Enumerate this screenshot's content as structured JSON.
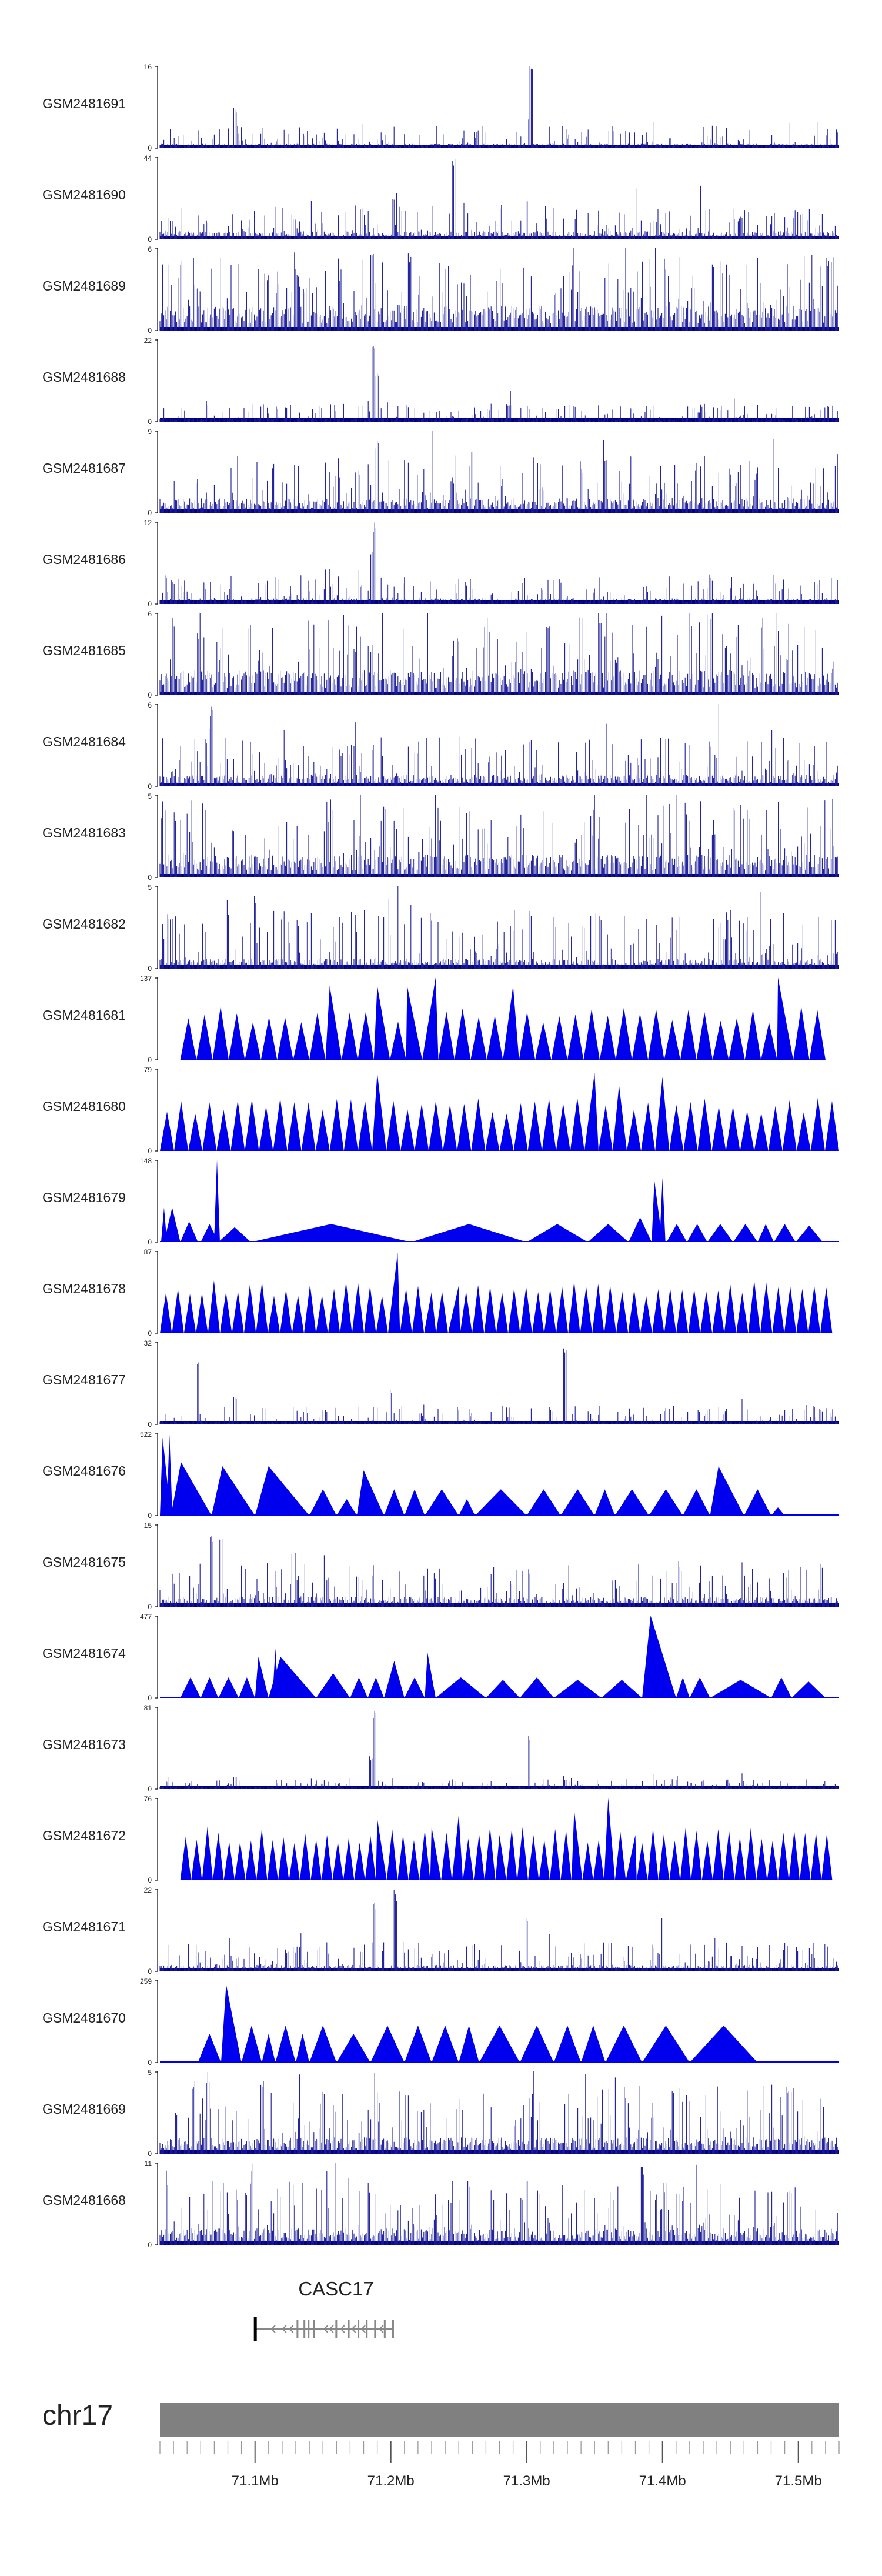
{
  "colors": {
    "bar": "#1a1a99",
    "bar_dark": "#00007f",
    "tri": "#0000ee",
    "axis": "#000000",
    "chrom": "#808080",
    "gene": "#888888"
  },
  "chart_data": {
    "type": "genome-browser",
    "region": {
      "chrom": "chr17",
      "start": 71030000,
      "end": 71530000
    },
    "x_ticks": [
      {
        "pos": 71100000,
        "label": "71.1Mb"
      },
      {
        "pos": 71200000,
        "label": "71.2Mb"
      },
      {
        "pos": 71300000,
        "label": "71.3Mb"
      },
      {
        "pos": 71400000,
        "label": "71.4Mb"
      },
      {
        "pos": 71500000,
        "label": "71.5Mb"
      }
    ],
    "tracks": [
      {
        "name": "GSM2481691",
        "ymax": "16",
        "ymin": "0",
        "style": "bar",
        "base": 0.06,
        "noise": 0.22,
        "peaks": [
          [
            71085000,
            0.5
          ],
          [
            71303000,
            1.0
          ]
        ]
      },
      {
        "name": "GSM2481690",
        "ymax": "44",
        "ymin": "0",
        "style": "bar",
        "base": 0.1,
        "noise": 0.35,
        "peaks": [
          [
            71246000,
            1.0
          ],
          [
            71202000,
            0.55
          ],
          [
            71300000,
            0.5
          ]
        ]
      },
      {
        "name": "GSM2481689",
        "ymax": "6",
        "ymin": "0",
        "style": "bar",
        "base": 0.3,
        "noise": 0.7,
        "peaks": [
          [
            71186000,
            1.0
          ],
          [
            71214000,
            0.95
          ]
        ]
      },
      {
        "name": "GSM2481688",
        "ymax": "22",
        "ymin": "0",
        "style": "bar",
        "base": 0.04,
        "noise": 0.18,
        "peaks": [
          [
            71187000,
            1.0
          ],
          [
            71190000,
            0.6
          ],
          [
            71288000,
            0.22
          ]
        ]
      },
      {
        "name": "GSM2481687",
        "ymax": "9",
        "ymin": "0",
        "style": "bar",
        "base": 0.18,
        "noise": 0.55,
        "peaks": [
          [
            71190000,
            0.9
          ],
          [
            71260000,
            0.8
          ]
        ]
      },
      {
        "name": "GSM2481686",
        "ymax": "12",
        "ymin": "0",
        "style": "bar",
        "base": 0.07,
        "noise": 0.3,
        "peaks": [
          [
            71188000,
            1.0
          ],
          [
            71186000,
            0.7
          ]
        ]
      },
      {
        "name": "GSM2481685",
        "ymax": "6",
        "ymin": "0",
        "style": "bar",
        "base": 0.3,
        "noise": 0.75,
        "peaks": [
          [
            71316000,
            0.9
          ]
        ]
      },
      {
        "name": "GSM2481684",
        "ymax": "6",
        "ymin": "0",
        "style": "bar",
        "base": 0.14,
        "noise": 0.5,
        "peaks": [
          [
            71068000,
            0.98
          ]
        ]
      },
      {
        "name": "GSM2481683",
        "ymax": "5",
        "ymin": "0",
        "style": "bar",
        "base": 0.28,
        "noise": 0.75,
        "peaks": []
      },
      {
        "name": "GSM2481682",
        "ymax": "5",
        "ymin": "0",
        "style": "bar",
        "base": 0.12,
        "noise": 0.6,
        "peaks": [
          [
            71100000,
            0.9
          ]
        ]
      },
      {
        "name": "GSM2481681",
        "ymax": "137",
        "ymin": "0",
        "style": "tri",
        "from": 71045000,
        "to": 71520000,
        "tris": 40,
        "high": [
          [
            71155000,
            0.9
          ],
          [
            71190000,
            0.9
          ],
          [
            71212000,
            0.9
          ],
          [
            71225000,
            0.85
          ],
          [
            71233000,
            1.0
          ],
          [
            71290000,
            0.9
          ],
          [
            71485000,
            1.0
          ]
        ]
      },
      {
        "name": "GSM2481680",
        "ymax": "79",
        "ymin": "0",
        "style": "tri",
        "from": 71030000,
        "to": 71530000,
        "tris": 48,
        "high": [
          [
            71190000,
            0.95
          ],
          [
            71350000,
            0.95
          ],
          [
            71368000,
            0.8
          ],
          [
            71400000,
            0.9
          ]
        ]
      },
      {
        "name": "GSM2481679",
        "ymax": "148",
        "ymin": "0",
        "style": "tri-sparse",
        "segs": [
          [
            71033000,
            71045000,
            0.42
          ],
          [
            71045000,
            71058000,
            0.25
          ],
          [
            71060000,
            71073000,
            0.22
          ],
          [
            71073000,
            71097000,
            0.18
          ],
          [
            71097000,
            71215000,
            0.22
          ],
          [
            71215000,
            71300000,
            0.22
          ],
          [
            71300000,
            71345000,
            0.22
          ],
          [
            71345000,
            71375000,
            0.22
          ],
          [
            71375000,
            71392000,
            0.3
          ],
          [
            71392000,
            71400000,
            0.75
          ],
          [
            71403000,
            71418000,
            0.22
          ],
          [
            71418000,
            71433000,
            0.22
          ],
          [
            71433000,
            71452000,
            0.22
          ],
          [
            71452000,
            71470000,
            0.22
          ],
          [
            71470000,
            71482000,
            0.22
          ],
          [
            71482000,
            71498000,
            0.22
          ],
          [
            71498000,
            71518000,
            0.2
          ]
        ],
        "spikes": [
          [
            71072000,
            1.0
          ],
          [
            71033000,
            0.42
          ],
          [
            71400000,
            0.78
          ]
        ]
      },
      {
        "name": "GSM2481678",
        "ymax": "87",
        "ymin": "0",
        "style": "tri",
        "from": 71030000,
        "to": 71525000,
        "tris": 56,
        "high": [
          [
            71205000,
            0.98
          ],
          [
            71250000,
            0.58
          ],
          [
            71230000,
            0.5
          ]
        ]
      },
      {
        "name": "GSM2481677",
        "ymax": "32",
        "ymin": "0",
        "style": "bar",
        "base": 0.04,
        "noise": 0.2,
        "peaks": [
          [
            71058000,
            0.82
          ],
          [
            71328000,
            1.0
          ],
          [
            71200000,
            0.45
          ],
          [
            71085000,
            0.35
          ]
        ]
      },
      {
        "name": "GSM2481676",
        "ymax": "522",
        "ymin": "0",
        "style": "tri-sparse",
        "segs": [
          [
            71030000,
            71038000,
            0.95
          ],
          [
            71038000,
            71068000,
            0.65
          ],
          [
            71068000,
            71100000,
            0.6
          ],
          [
            71100000,
            71140000,
            0.6
          ],
          [
            71140000,
            71160000,
            0.32
          ],
          [
            71160000,
            71175000,
            0.2
          ],
          [
            71175000,
            71195000,
            0.55
          ],
          [
            71195000,
            71210000,
            0.32
          ],
          [
            71210000,
            71225000,
            0.32
          ],
          [
            71225000,
            71250000,
            0.32
          ],
          [
            71250000,
            71262000,
            0.2
          ],
          [
            71262000,
            71300000,
            0.32
          ],
          [
            71300000,
            71325000,
            0.32
          ],
          [
            71325000,
            71350000,
            0.32
          ],
          [
            71350000,
            71365000,
            0.32
          ],
          [
            71365000,
            71390000,
            0.32
          ],
          [
            71390000,
            71415000,
            0.32
          ],
          [
            71415000,
            71435000,
            0.32
          ],
          [
            71435000,
            71460000,
            0.6
          ],
          [
            71460000,
            71480000,
            0.32
          ],
          [
            71480000,
            71490000,
            0.1
          ]
        ],
        "spikes": [
          [
            71037000,
            0.98
          ]
        ]
      },
      {
        "name": "GSM2481675",
        "ymax": "15",
        "ymin": "0",
        "style": "bar",
        "base": 0.12,
        "noise": 0.45,
        "peaks": [
          [
            71068000,
            0.9
          ],
          [
            71075000,
            0.85
          ]
        ]
      },
      {
        "name": "GSM2481674",
        "ymax": "477",
        "ymin": "0",
        "style": "tri-sparse",
        "segs": [
          [
            71045000,
            71060000,
            0.25
          ],
          [
            71060000,
            71073000,
            0.25
          ],
          [
            71073000,
            71088000,
            0.25
          ],
          [
            71088000,
            71100000,
            0.25
          ],
          [
            71100000,
            71110000,
            0.5
          ],
          [
            71110000,
            71145000,
            0.5
          ],
          [
            71145000,
            71170000,
            0.3
          ],
          [
            71170000,
            71183000,
            0.25
          ],
          [
            71183000,
            71195000,
            0.25
          ],
          [
            71195000,
            71210000,
            0.45
          ],
          [
            71210000,
            71225000,
            0.25
          ],
          [
            71225000,
            71233000,
            0.55
          ],
          [
            71233000,
            71270000,
            0.25
          ],
          [
            71270000,
            71295000,
            0.22
          ],
          [
            71295000,
            71320000,
            0.25
          ],
          [
            71320000,
            71355000,
            0.22
          ],
          [
            71355000,
            71385000,
            0.22
          ],
          [
            71385000,
            71410000,
            1.0
          ],
          [
            71410000,
            71420000,
            0.25
          ],
          [
            71420000,
            71435000,
            0.25
          ],
          [
            71435000,
            71480000,
            0.22
          ],
          [
            71480000,
            71495000,
            0.25
          ],
          [
            71495000,
            71520000,
            0.2
          ]
        ],
        "spikes": [
          [
            71115000,
            0.6
          ]
        ]
      },
      {
        "name": "GSM2481673",
        "ymax": "81",
        "ymin": "0",
        "style": "bar",
        "base": 0.03,
        "noise": 0.1,
        "peaks": [
          [
            71188000,
            1.0
          ],
          [
            71302000,
            0.7
          ],
          [
            71185000,
            0.4
          ],
          [
            71085000,
            0.15
          ]
        ]
      },
      {
        "name": "GSM2481672",
        "ymax": "76",
        "ymin": "0",
        "style": "tri",
        "from": 71045000,
        "to": 71525000,
        "tris": 60,
        "high": [
          [
            71065000,
            0.65
          ],
          [
            71190000,
            0.75
          ],
          [
            71230000,
            0.65
          ],
          [
            71250000,
            0.8
          ],
          [
            71280000,
            0.55
          ],
          [
            71335000,
            0.85
          ],
          [
            71360000,
            1.0
          ],
          [
            71380000,
            0.55
          ]
        ]
      },
      {
        "name": "GSM2481671",
        "ymax": "22",
        "ymin": "0",
        "style": "bar",
        "base": 0.08,
        "noise": 0.3,
        "peaks": [
          [
            71188000,
            0.85
          ],
          [
            71203000,
            1.0
          ],
          [
            71300000,
            0.7
          ]
        ]
      },
      {
        "name": "GSM2481670",
        "ymax": "259",
        "ymin": "0",
        "style": "tri-sparse",
        "segs": [
          [
            71058000,
            71075000,
            0.35
          ],
          [
            71075000,
            71090000,
            0.95
          ],
          [
            71090000,
            71105000,
            0.45
          ],
          [
            71105000,
            71115000,
            0.35
          ],
          [
            71115000,
            71130000,
            0.45
          ],
          [
            71130000,
            71140000,
            0.35
          ],
          [
            71140000,
            71160000,
            0.45
          ],
          [
            71160000,
            71185000,
            0.35
          ],
          [
            71185000,
            71210000,
            0.45
          ],
          [
            71210000,
            71230000,
            0.45
          ],
          [
            71230000,
            71250000,
            0.45
          ],
          [
            71250000,
            71265000,
            0.45
          ],
          [
            71265000,
            71295000,
            0.45
          ],
          [
            71295000,
            71320000,
            0.45
          ],
          [
            71320000,
            71340000,
            0.45
          ],
          [
            71340000,
            71358000,
            0.45
          ],
          [
            71358000,
            71385000,
            0.45
          ],
          [
            71385000,
            71420000,
            0.45
          ],
          [
            71420000,
            71470000,
            0.45
          ]
        ],
        "spikes": []
      },
      {
        "name": "GSM2481669",
        "ymax": "5",
        "ymin": "0",
        "style": "bar",
        "base": 0.2,
        "noise": 0.7,
        "peaks": [
          [
            71055000,
            0.9
          ],
          [
            71065000,
            1.0
          ],
          [
            71105000,
            0.95
          ]
        ]
      },
      {
        "name": "GSM2481668",
        "ymax": "11",
        "ymin": "0",
        "style": "bar",
        "base": 0.2,
        "noise": 0.6,
        "peaks": [
          [
            71098000,
            1.0
          ],
          [
            71300000,
            0.9
          ],
          [
            71385000,
            0.95
          ]
        ]
      }
    ],
    "gene": {
      "name": "CASC17",
      "start": 71100000,
      "end": 71202000,
      "strand": "-"
    },
    "chrom_label": "chr17",
    "min_ticks_count": 50
  }
}
